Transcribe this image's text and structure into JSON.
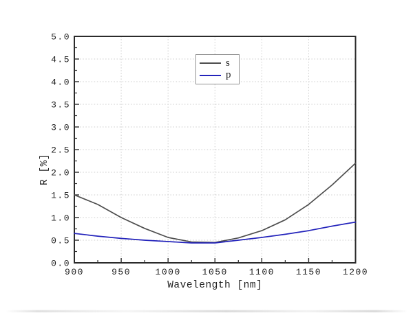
{
  "figure": {
    "background": "#ffffff"
  },
  "chart_data": {
    "type": "line",
    "title": "",
    "xlabel": "Wavelength [nm]",
    "ylabel": "R [%]",
    "xlim": [
      900,
      1200
    ],
    "ylim": [
      0.0,
      5.0
    ],
    "x_major_ticks": [
      900,
      950,
      1000,
      1050,
      1100,
      1150,
      1200
    ],
    "x_minor_tick_step": 25,
    "y_tick_labels": [
      "0.0",
      "0.5",
      "1.0",
      "1.5",
      "2.0",
      "2.5",
      "3.0",
      "3.5",
      "4.0",
      "4.5",
      "5.0"
    ],
    "y_minor_tick_step": 0.25,
    "grid": {
      "show": true,
      "style": "dotted",
      "color": "#cccccc",
      "on_major_ticks_only": true
    },
    "legend": {
      "position": "inside-top-center",
      "entries": [
        "s",
        "p"
      ]
    },
    "axis_color": "#2b2b2b",
    "x": [
      900,
      925,
      950,
      975,
      1000,
      1025,
      1050,
      1075,
      1100,
      1125,
      1150,
      1175,
      1200
    ],
    "series": [
      {
        "name": "s",
        "color": "#4d4d4d",
        "values": [
          1.5,
          1.29,
          1.0,
          0.76,
          0.56,
          0.46,
          0.45,
          0.55,
          0.71,
          0.95,
          1.29,
          1.72,
          2.2
        ]
      },
      {
        "name": "p",
        "color": "#2323bb",
        "values": [
          0.65,
          0.59,
          0.54,
          0.5,
          0.47,
          0.44,
          0.44,
          0.5,
          0.56,
          0.63,
          0.71,
          0.81,
          0.9
        ]
      }
    ]
  }
}
